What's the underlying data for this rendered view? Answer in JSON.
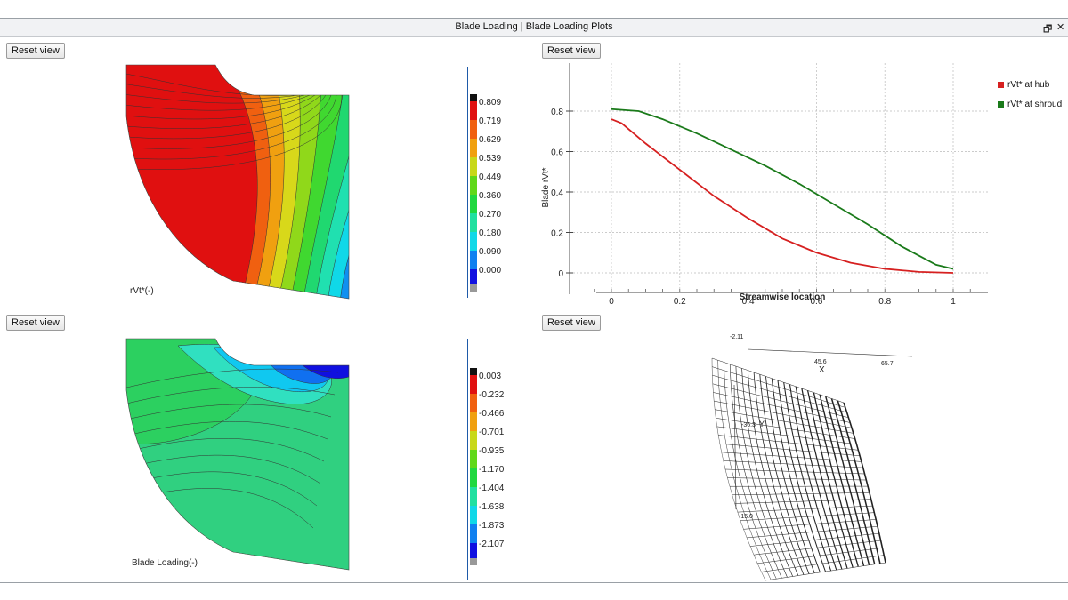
{
  "window": {
    "title": "Blade Loading | Blade Loading Plots",
    "restore_icon": "restore-icon",
    "close_icon": "close-icon"
  },
  "reset_label": "Reset view",
  "contour_top": {
    "label": "rVt*(-)",
    "colorbar": [
      "0.809",
      "0.719",
      "0.629",
      "0.539",
      "0.449",
      "0.360",
      "0.270",
      "0.180",
      "0.090",
      "0.000"
    ]
  },
  "contour_bottom": {
    "label": "Blade Loading(-)",
    "colorbar": [
      "0.003",
      "-0.232",
      "-0.466",
      "-0.701",
      "-0.935",
      "-1.170",
      "-1.404",
      "-1.638",
      "-1.873",
      "-2.107"
    ]
  },
  "chart_data": {
    "type": "line",
    "xlabel": "Streamwise location",
    "ylabel": "Blade rVt*",
    "xlim": [
      -0.1,
      1.1
    ],
    "ylim": [
      -0.05,
      0.85
    ],
    "xticks": [
      "0",
      "0.2",
      "0.4",
      "0.6",
      "0.8",
      "1"
    ],
    "yticks": [
      "0",
      "0.2",
      "0.4",
      "0.6",
      "0.8"
    ],
    "grid": true,
    "legend_position": "top-right",
    "series": [
      {
        "name": "rVt* at hub",
        "color": "#d62020",
        "x": [
          0,
          0.03,
          0.1,
          0.2,
          0.3,
          0.4,
          0.5,
          0.6,
          0.7,
          0.8,
          0.9,
          1.0
        ],
        "y": [
          0.76,
          0.74,
          0.64,
          0.51,
          0.38,
          0.27,
          0.17,
          0.1,
          0.05,
          0.02,
          0.005,
          0
        ]
      },
      {
        "name": "rVt* at shroud",
        "color": "#1a7a1a",
        "x": [
          0,
          0.08,
          0.15,
          0.25,
          0.35,
          0.45,
          0.55,
          0.65,
          0.75,
          0.85,
          0.95,
          1.0
        ],
        "y": [
          0.81,
          0.8,
          0.76,
          0.69,
          0.61,
          0.53,
          0.44,
          0.34,
          0.24,
          0.13,
          0.04,
          0.02
        ]
      }
    ]
  },
  "mesh": {
    "x_axis_label": "X",
    "y_axis_label": "Y",
    "tick_labels": [
      "45.6",
      "65.7",
      "-36.3",
      "-15.0",
      "-2.11"
    ]
  }
}
